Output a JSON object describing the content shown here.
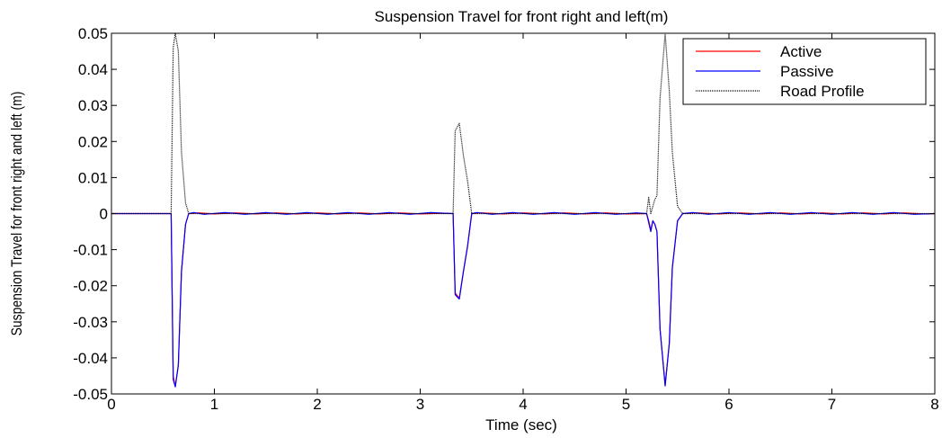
{
  "chart_data": {
    "type": "line",
    "title": "Suspension Travel for front right and left(m)",
    "xlabel": "Time (sec)",
    "ylabel": "Suspension Travel for front right and left (m)",
    "xlim": [
      0,
      8
    ],
    "ylim": [
      -0.05,
      0.05
    ],
    "x_ticks": [
      0,
      1,
      2,
      3,
      4,
      5,
      6,
      7,
      8
    ],
    "x_tick_labels": [
      "0",
      "1",
      "2",
      "3",
      "4",
      "5",
      "6",
      "7",
      "8"
    ],
    "y_ticks": [
      -0.05,
      -0.04,
      -0.03,
      -0.02,
      -0.01,
      0,
      0.01,
      0.02,
      0.03,
      0.04,
      0.05
    ],
    "y_tick_labels": [
      "-0.05",
      "-0.04",
      "-0.03",
      "-0.02",
      "-0.01",
      "0",
      "0.01",
      "0.02",
      "0.03",
      "0.04",
      "0.05"
    ],
    "grid": false,
    "legend_position": "top-right",
    "series": [
      {
        "name": "Active",
        "color": "#ff0000",
        "style": "solid",
        "points": [
          [
            0,
            0
          ],
          [
            0.58,
            0
          ],
          [
            0.6,
            -0.045
          ],
          [
            0.62,
            -0.048
          ],
          [
            0.65,
            -0.042
          ],
          [
            0.68,
            -0.016
          ],
          [
            0.72,
            -0.003
          ],
          [
            0.75,
            0
          ],
          [
            0.85,
            0.0002
          ],
          [
            1.0,
            -0.0001
          ],
          [
            1.2,
            0.0002
          ],
          [
            1.4,
            -0.0001
          ],
          [
            1.6,
            0.0002
          ],
          [
            1.8,
            -0.0001
          ],
          [
            2.0,
            0.0002
          ],
          [
            2.2,
            -0.0001
          ],
          [
            2.4,
            0.0002
          ],
          [
            2.6,
            -0.0001
          ],
          [
            2.8,
            0.0002
          ],
          [
            3.0,
            -0.0001
          ],
          [
            3.2,
            0.0001
          ],
          [
            3.32,
            0
          ],
          [
            3.34,
            -0.022
          ],
          [
            3.38,
            -0.0235
          ],
          [
            3.42,
            -0.016
          ],
          [
            3.46,
            -0.009
          ],
          [
            3.5,
            0
          ],
          [
            3.6,
            0.0002
          ],
          [
            3.8,
            -0.0001
          ],
          [
            4.0,
            0.0002
          ],
          [
            4.2,
            -0.0001
          ],
          [
            4.4,
            0.0002
          ],
          [
            4.6,
            -0.0001
          ],
          [
            4.8,
            0.0002
          ],
          [
            5.0,
            -0.0001
          ],
          [
            5.2,
            0
          ],
          [
            5.22,
            -0.002
          ],
          [
            5.24,
            -0.0045
          ],
          [
            5.26,
            -0.002
          ],
          [
            5.28,
            -0.003
          ],
          [
            5.3,
            -0.005
          ],
          [
            5.33,
            -0.032
          ],
          [
            5.38,
            -0.0475
          ],
          [
            5.42,
            -0.036
          ],
          [
            5.45,
            -0.015
          ],
          [
            5.5,
            -0.002
          ],
          [
            5.55,
            0
          ],
          [
            5.7,
            0.0002
          ],
          [
            5.9,
            -0.0001
          ],
          [
            6.1,
            0.0002
          ],
          [
            6.3,
            -0.0001
          ],
          [
            6.5,
            0.0002
          ],
          [
            6.7,
            -0.0001
          ],
          [
            6.9,
            0.0002
          ],
          [
            7.1,
            -0.0001
          ],
          [
            7.3,
            0.0002
          ],
          [
            7.5,
            -0.0001
          ],
          [
            7.7,
            0.0002
          ],
          [
            7.9,
            -0.0001
          ],
          [
            8.0,
            0
          ]
        ]
      },
      {
        "name": "Passive",
        "color": "#0000ff",
        "style": "solid",
        "points": [
          [
            0,
            0
          ],
          [
            0.58,
            0
          ],
          [
            0.6,
            -0.046
          ],
          [
            0.62,
            -0.048
          ],
          [
            0.65,
            -0.042
          ],
          [
            0.68,
            -0.016
          ],
          [
            0.72,
            -0.003
          ],
          [
            0.75,
            0
          ],
          [
            0.8,
            0.0003
          ],
          [
            0.9,
            -0.0002
          ],
          [
            1.1,
            0.0003
          ],
          [
            1.3,
            -0.0002
          ],
          [
            1.5,
            0.0003
          ],
          [
            1.7,
            -0.0002
          ],
          [
            1.9,
            0.0003
          ],
          [
            2.1,
            -0.0002
          ],
          [
            2.3,
            0.0003
          ],
          [
            2.5,
            -0.0002
          ],
          [
            2.7,
            0.0003
          ],
          [
            2.9,
            -0.0002
          ],
          [
            3.1,
            0.0003
          ],
          [
            3.32,
            0
          ],
          [
            3.34,
            -0.0225
          ],
          [
            3.38,
            -0.0237
          ],
          [
            3.42,
            -0.016
          ],
          [
            3.46,
            -0.009
          ],
          [
            3.5,
            0
          ],
          [
            3.55,
            0.0003
          ],
          [
            3.7,
            -0.0002
          ],
          [
            3.9,
            0.0003
          ],
          [
            4.1,
            -0.0002
          ],
          [
            4.3,
            0.0003
          ],
          [
            4.5,
            -0.0002
          ],
          [
            4.7,
            0.0003
          ],
          [
            4.9,
            -0.0002
          ],
          [
            5.1,
            0.0002
          ],
          [
            5.2,
            0
          ],
          [
            5.22,
            -0.0025
          ],
          [
            5.24,
            -0.005
          ],
          [
            5.26,
            -0.002
          ],
          [
            5.28,
            -0.003
          ],
          [
            5.3,
            -0.005
          ],
          [
            5.33,
            -0.032
          ],
          [
            5.38,
            -0.0478
          ],
          [
            5.42,
            -0.036
          ],
          [
            5.45,
            -0.015
          ],
          [
            5.5,
            -0.002
          ],
          [
            5.55,
            0
          ],
          [
            5.65,
            0.0003
          ],
          [
            5.8,
            -0.0002
          ],
          [
            6.0,
            0.0003
          ],
          [
            6.2,
            -0.0002
          ],
          [
            6.4,
            0.0003
          ],
          [
            6.6,
            -0.0002
          ],
          [
            6.8,
            0.0003
          ],
          [
            7.0,
            -0.0002
          ],
          [
            7.2,
            0.0003
          ],
          [
            7.4,
            -0.0002
          ],
          [
            7.6,
            0.0003
          ],
          [
            7.8,
            -0.0002
          ],
          [
            8.0,
            0
          ]
        ]
      },
      {
        "name": "Road Profile",
        "color": "#000000",
        "style": "dotted",
        "points": [
          [
            0,
            0
          ],
          [
            0.58,
            0
          ],
          [
            0.6,
            0.046
          ],
          [
            0.62,
            0.05
          ],
          [
            0.65,
            0.045
          ],
          [
            0.68,
            0.017
          ],
          [
            0.72,
            0.003
          ],
          [
            0.75,
            0
          ],
          [
            3.32,
            0
          ],
          [
            3.34,
            0.023
          ],
          [
            3.38,
            0.025
          ],
          [
            3.42,
            0.016
          ],
          [
            3.46,
            0.009
          ],
          [
            3.5,
            0
          ],
          [
            5.2,
            0
          ],
          [
            5.22,
            0.0045
          ],
          [
            5.24,
            0
          ],
          [
            5.28,
            0.004
          ],
          [
            5.3,
            0.005
          ],
          [
            5.33,
            0.032
          ],
          [
            5.38,
            0.05
          ],
          [
            5.42,
            0.034
          ],
          [
            5.45,
            0.017
          ],
          [
            5.5,
            0.002
          ],
          [
            5.55,
            0
          ],
          [
            8.0,
            0
          ]
        ]
      }
    ]
  }
}
